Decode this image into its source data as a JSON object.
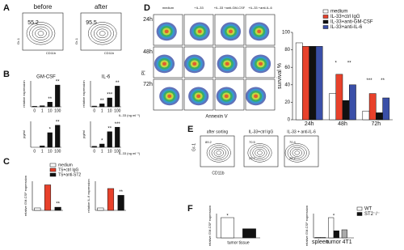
{
  "panel_A": {
    "letter": "A",
    "plots": [
      {
        "title": "before",
        "gate": 55.2
      },
      {
        "title": "after",
        "gate": 95.5
      }
    ],
    "y_axis": "Gr-1",
    "x_axis": "CD11b"
  },
  "panel_B": {
    "letter": "B",
    "x_axis": "IL-33 (ng ml⁻¹)"
  },
  "panel_C": {
    "letter": "C",
    "legend": [
      {
        "name": "medium",
        "color": "#ffffff"
      },
      {
        "name": "TS+ctrl IgG",
        "color": "#e8412b"
      },
      {
        "name": "TS+anti-ST2",
        "color": "#111111"
      }
    ]
  },
  "panel_D": {
    "letter": "D",
    "columns": [
      "medium",
      "+IL-33",
      "+IL-33 +anti-GM-CSF",
      "+IL-33 +anti-IL-6"
    ],
    "rows": [
      "24h",
      "48h",
      "72h"
    ],
    "y_axis": "PI",
    "x_axis": "Annexin V"
  },
  "panel_E": {
    "letter": "E",
    "plots": [
      {
        "title": "after sorting",
        "gates": [
          89.2
        ]
      },
      {
        "title": "IL-33+ctrl IgG",
        "gates": [
          70.5,
          25.7
        ]
      },
      {
        "title": "IL-33 + anti-IL-6",
        "gates": [
          70.4,
          26.7
        ]
      }
    ],
    "y_axis": "Gr-1",
    "x_axis": "CD11b"
  },
  "panel_F": {
    "letter": "F"
  },
  "chart_data": [
    {
      "type": "bar",
      "title": "GM-CSF",
      "y_label": "relative expression",
      "categories": [
        "0",
        "1",
        "10",
        "100"
      ],
      "values": [
        1,
        2,
        9,
        42
      ],
      "color": "#111111",
      "ylim": [
        0,
        50
      ],
      "annotations": [
        "**",
        "**"
      ]
    },
    {
      "type": "bar",
      "title": "IL-6",
      "y_label": "relative expression",
      "categories": [
        "0",
        "1",
        "10",
        "100"
      ],
      "values": [
        1,
        4,
        12,
        28
      ],
      "color": "#111111",
      "ylim": [
        0,
        35
      ],
      "annotations": [
        "**",
        "***",
        "**"
      ]
    },
    {
      "type": "bar",
      "y_label": "pg/ml",
      "categories": [
        "0",
        "1",
        "10",
        "100"
      ],
      "values": [
        0,
        4,
        45,
        68
      ],
      "color": "#111111",
      "ylim": [
        0,
        80
      ],
      "annotations": [
        "*",
        "**"
      ]
    },
    {
      "type": "bar",
      "y_label": "pg/ml",
      "categories": [
        "0",
        "1",
        "10",
        "100"
      ],
      "values": [
        3,
        10,
        48,
        62
      ],
      "color": "#111111",
      "ylim": [
        0,
        80
      ],
      "annotations": [
        "*",
        "**",
        "***"
      ]
    },
    {
      "type": "bar",
      "y_label": "relative GM-CSF expression",
      "values": [
        1,
        10.5,
        1.3
      ],
      "colors": [
        "#ffffff",
        "#e8412b",
        "#111111"
      ],
      "ylim": [
        0,
        12
      ],
      "annotations": [
        "**"
      ]
    },
    {
      "type": "bar",
      "y_label": "relative IL-6 expression",
      "values": [
        1,
        9,
        6.2
      ],
      "colors": [
        "#ffffff",
        "#e8412b",
        "#111111"
      ],
      "ylim": [
        0,
        12
      ],
      "annotations": [
        "**"
      ]
    },
    {
      "type": "bar",
      "y_label": "survival %",
      "categories": [
        "24h",
        "48h",
        "72h"
      ],
      "series": [
        {
          "name": "medium",
          "color": "#ffffff",
          "values": [
            88,
            30,
            10
          ]
        },
        {
          "name": "IL-33+ctrl IgG",
          "color": "#e8412b",
          "values": [
            84,
            52,
            30
          ]
        },
        {
          "name": "IL-33+anti-GM-CSF",
          "color": "#111111",
          "values": [
            84,
            22,
            8
          ]
        },
        {
          "name": "IL-33+anti-IL-6",
          "color": "#3a4fa8",
          "values": [
            84,
            40,
            25
          ]
        }
      ],
      "ylim": [
        0,
        100
      ],
      "yticks": [
        0,
        20,
        40,
        60,
        80,
        100
      ],
      "legend": "top-right",
      "annotations": [
        "*",
        "**",
        "***",
        "**"
      ]
    },
    {
      "type": "bar",
      "y_label": "relative GM-CSF expression",
      "x_label": "tumor tissue",
      "values": [
        1,
        0.45
      ],
      "colors": [
        "#ffffff",
        "#111111"
      ],
      "ylim": [
        0,
        1.2
      ],
      "annotations": [
        "*"
      ]
    },
    {
      "type": "bar",
      "y_label": "relative GM-CSF expression",
      "categories": [
        "spleen",
        "tumor",
        "4T1"
      ],
      "series": [
        {
          "name": "WT",
          "color": "#ffffff",
          "colors": [
            "#ffffff",
            "#ffffff",
            "#aaaaaa"
          ],
          "values": [
            0.02,
            1,
            0.4
          ]
        },
        {
          "name": "ST2⁻/⁻",
          "color": "#111111",
          "values": [
            0.02,
            0.35,
            null
          ]
        }
      ],
      "ylim": [
        0,
        1.2
      ],
      "legend": "top-right",
      "annotations": [
        "*"
      ]
    }
  ]
}
